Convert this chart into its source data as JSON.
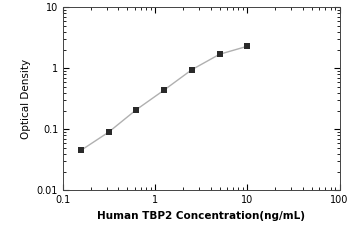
{
  "x": [
    0.156,
    0.313,
    0.625,
    1.25,
    2.5,
    5.0,
    10.0
  ],
  "y": [
    0.045,
    0.09,
    0.21,
    0.44,
    0.95,
    1.7,
    2.3
  ],
  "xlabel": "Human TBP2 Concentration(ng/mL)",
  "ylabel": "Optical Density",
  "xlim": [
    0.1,
    100
  ],
  "ylim": [
    0.01,
    10
  ],
  "line_color": "#b0b0b0",
  "marker_color": "#2a2a2a",
  "marker": "s",
  "marker_size": 4.5,
  "line_width": 1.0,
  "background_color": "#ffffff",
  "xticks": [
    0.1,
    1,
    10,
    100
  ],
  "yticks": [
    0.01,
    0.1,
    1,
    10
  ],
  "xlabel_fontsize": 7.5,
  "ylabel_fontsize": 7.5,
  "tick_labelsize": 7
}
